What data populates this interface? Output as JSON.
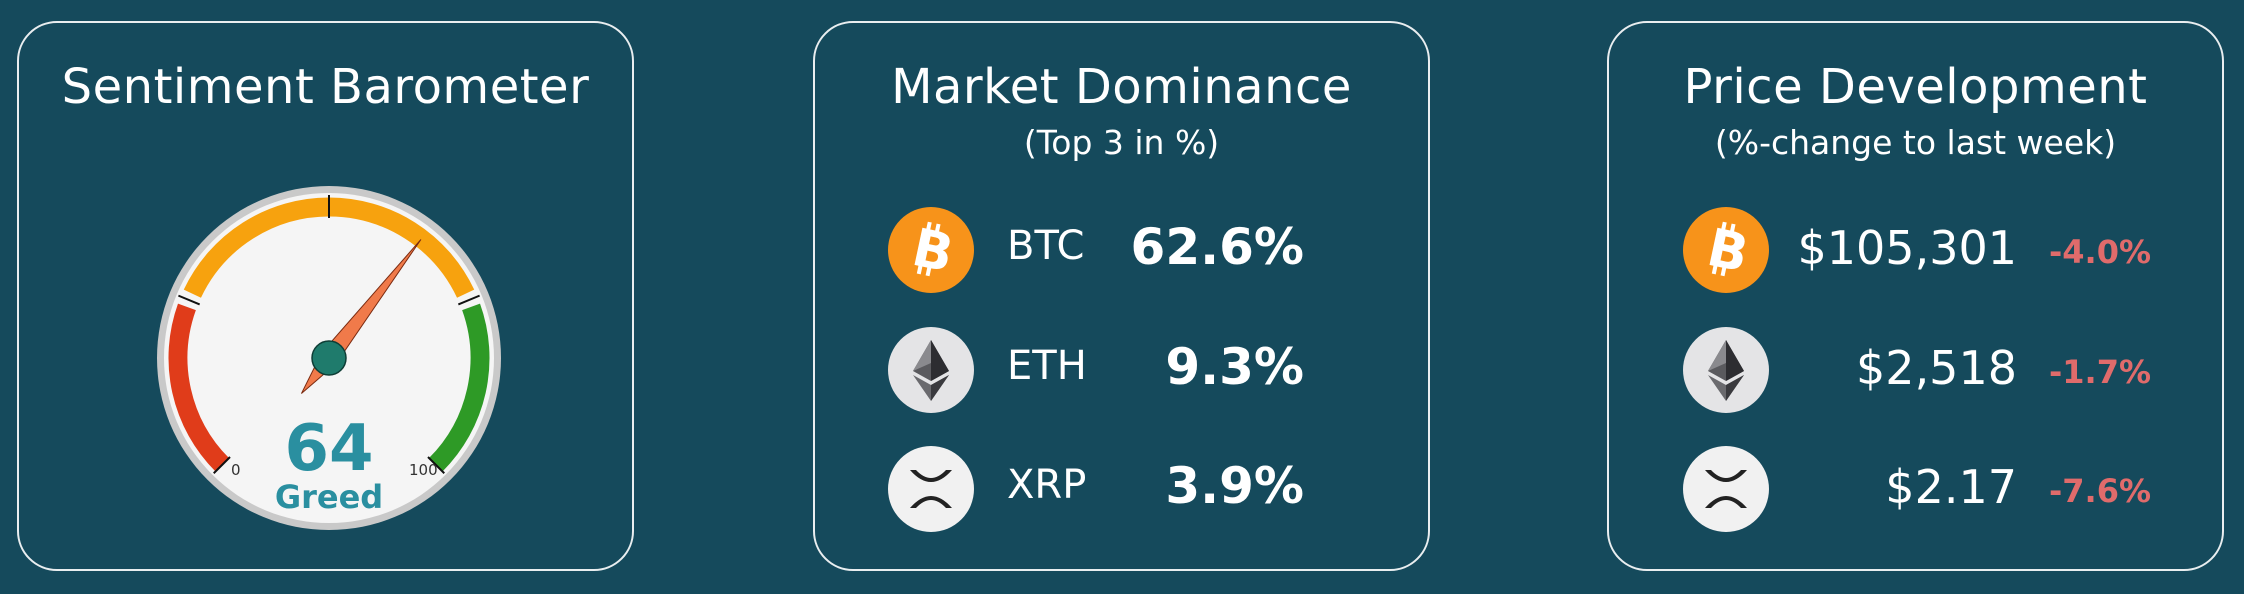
{
  "sentiment": {
    "title": "Sentiment Barometer",
    "value": 64,
    "value_label": "64",
    "classification": "Greed",
    "scale_min_label": "0",
    "scale_max_label": "100",
    "colors": {
      "fear": "#e03c1a",
      "neutral": "#f7a20e",
      "greed": "#2e9a26",
      "needle": "#f07a4a",
      "hub": "#1f7b6c",
      "value_text": "#2a8fa0"
    }
  },
  "dominance": {
    "title": "Market Dominance",
    "subtitle": "(Top 3 in %)",
    "items": [
      {
        "symbol": "BTC",
        "value": "62.6%",
        "icon": "bitcoin-icon"
      },
      {
        "symbol": "ETH",
        "value": "9.3%",
        "icon": "ethereum-icon"
      },
      {
        "symbol": "XRP",
        "value": "3.9%",
        "icon": "xrp-icon"
      }
    ]
  },
  "price": {
    "title": "Price Development",
    "subtitle": "(%-change to last week)",
    "items": [
      {
        "price": "$105,301",
        "change": "-4.0%",
        "icon": "bitcoin-icon"
      },
      {
        "price": "$2,518",
        "change": "-1.7%",
        "icon": "ethereum-icon"
      },
      {
        "price": "$2.17",
        "change": "-7.6%",
        "icon": "xrp-icon"
      }
    ]
  },
  "colors": {
    "background": "#154a5c",
    "card_border": "#e9eef0",
    "negative": "#e06b6b",
    "bitcoin": "#f7931a"
  }
}
